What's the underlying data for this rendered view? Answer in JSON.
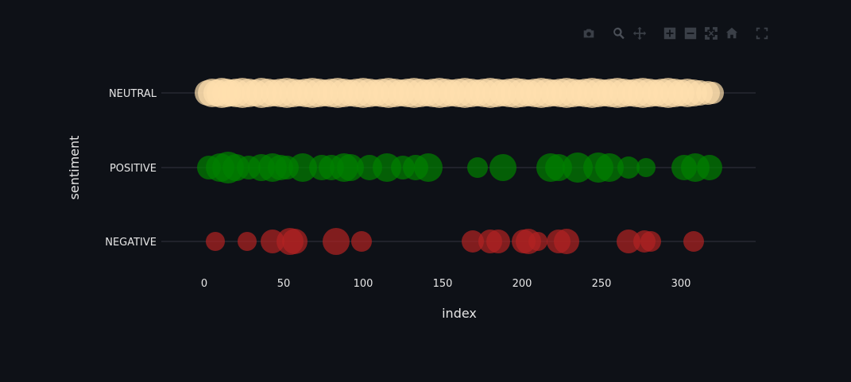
{
  "toolbar": {
    "buttons": [
      "camera-icon",
      "zoom-icon",
      "pan-icon",
      "zoom-in-icon",
      "zoom-out-icon",
      "autoscale-icon",
      "home-icon",
      "fullscreen-icon"
    ]
  },
  "chart_data": {
    "type": "scatter",
    "xlabel": "index",
    "ylabel": "sentiment",
    "xlim": [
      -12,
      345
    ],
    "xticks": [
      0,
      50,
      100,
      150,
      200,
      250,
      300
    ],
    "grid": true,
    "categories": [
      "NEUTRAL",
      "POSITIVE",
      "NEGATIVE"
    ],
    "colors": {
      "NEUTRAL": "#ffdfae",
      "POSITIVE": "#008000",
      "NEGATIVE": "#b22222"
    },
    "series": [
      {
        "category": "NEUTRAL",
        "points": [
          [
            2,
            16
          ],
          [
            5,
            18
          ],
          [
            8,
            17
          ],
          [
            11,
            19
          ],
          [
            14,
            18
          ],
          [
            17,
            17
          ],
          [
            20,
            18
          ],
          [
            24,
            19
          ],
          [
            28,
            18
          ],
          [
            32,
            17
          ],
          [
            36,
            19
          ],
          [
            40,
            18
          ],
          [
            44,
            17
          ],
          [
            48,
            18
          ],
          [
            52,
            19
          ],
          [
            56,
            18
          ],
          [
            60,
            17
          ],
          [
            64,
            18
          ],
          [
            68,
            19
          ],
          [
            72,
            18
          ],
          [
            76,
            17
          ],
          [
            80,
            18
          ],
          [
            84,
            19
          ],
          [
            88,
            18
          ],
          [
            92,
            17
          ],
          [
            96,
            18
          ],
          [
            100,
            19
          ],
          [
            104,
            18
          ],
          [
            108,
            17
          ],
          [
            112,
            18
          ],
          [
            116,
            19
          ],
          [
            120,
            18
          ],
          [
            124,
            17
          ],
          [
            128,
            18
          ],
          [
            132,
            19
          ],
          [
            136,
            18
          ],
          [
            140,
            17
          ],
          [
            144,
            18
          ],
          [
            148,
            19
          ],
          [
            152,
            18
          ],
          [
            156,
            17
          ],
          [
            160,
            18
          ],
          [
            164,
            19
          ],
          [
            168,
            18
          ],
          [
            172,
            17
          ],
          [
            176,
            18
          ],
          [
            180,
            19
          ],
          [
            184,
            18
          ],
          [
            188,
            17
          ],
          [
            192,
            18
          ],
          [
            196,
            19
          ],
          [
            200,
            18
          ],
          [
            204,
            17
          ],
          [
            208,
            18
          ],
          [
            212,
            19
          ],
          [
            216,
            18
          ],
          [
            220,
            17
          ],
          [
            224,
            18
          ],
          [
            228,
            19
          ],
          [
            232,
            18
          ],
          [
            236,
            17
          ],
          [
            240,
            18
          ],
          [
            244,
            19
          ],
          [
            248,
            18
          ],
          [
            252,
            17
          ],
          [
            256,
            18
          ],
          [
            260,
            19
          ],
          [
            264,
            18
          ],
          [
            268,
            17
          ],
          [
            272,
            18
          ],
          [
            276,
            19
          ],
          [
            280,
            18
          ],
          [
            284,
            17
          ],
          [
            288,
            18
          ],
          [
            292,
            19
          ],
          [
            296,
            18
          ],
          [
            300,
            17
          ],
          [
            304,
            18
          ],
          [
            308,
            17
          ],
          [
            312,
            16
          ],
          [
            317,
            15
          ],
          [
            320,
            14
          ]
        ]
      },
      {
        "category": "POSITIVE",
        "points": [
          [
            3,
            15
          ],
          [
            10,
            18
          ],
          [
            15,
            20
          ],
          [
            20,
            17
          ],
          [
            28,
            15
          ],
          [
            36,
            17
          ],
          [
            43,
            18
          ],
          [
            48,
            16
          ],
          [
            52,
            15
          ],
          [
            62,
            18
          ],
          [
            74,
            16
          ],
          [
            80,
            16
          ],
          [
            88,
            18
          ],
          [
            92,
            17
          ],
          [
            104,
            16
          ],
          [
            115,
            18
          ],
          [
            125,
            15
          ],
          [
            133,
            16
          ],
          [
            141,
            18
          ],
          [
            172,
            13
          ],
          [
            188,
            17
          ],
          [
            218,
            18
          ],
          [
            223,
            17
          ],
          [
            235,
            19
          ],
          [
            248,
            19
          ],
          [
            255,
            18
          ],
          [
            267,
            14
          ],
          [
            278,
            12
          ],
          [
            302,
            16
          ],
          [
            309,
            18
          ],
          [
            318,
            16
          ]
        ]
      },
      {
        "category": "NEGATIVE",
        "points": [
          [
            7,
            12
          ],
          [
            27,
            12
          ],
          [
            43,
            15
          ],
          [
            54,
            17
          ],
          [
            57,
            16
          ],
          [
            83,
            17
          ],
          [
            99,
            13
          ],
          [
            169,
            14
          ],
          [
            180,
            15
          ],
          [
            185,
            15
          ],
          [
            201,
            15
          ],
          [
            204,
            16
          ],
          [
            210,
            12
          ],
          [
            223,
            15
          ],
          [
            228,
            16
          ],
          [
            267,
            15
          ],
          [
            277,
            14
          ],
          [
            281,
            13
          ],
          [
            308,
            13
          ]
        ]
      }
    ]
  }
}
